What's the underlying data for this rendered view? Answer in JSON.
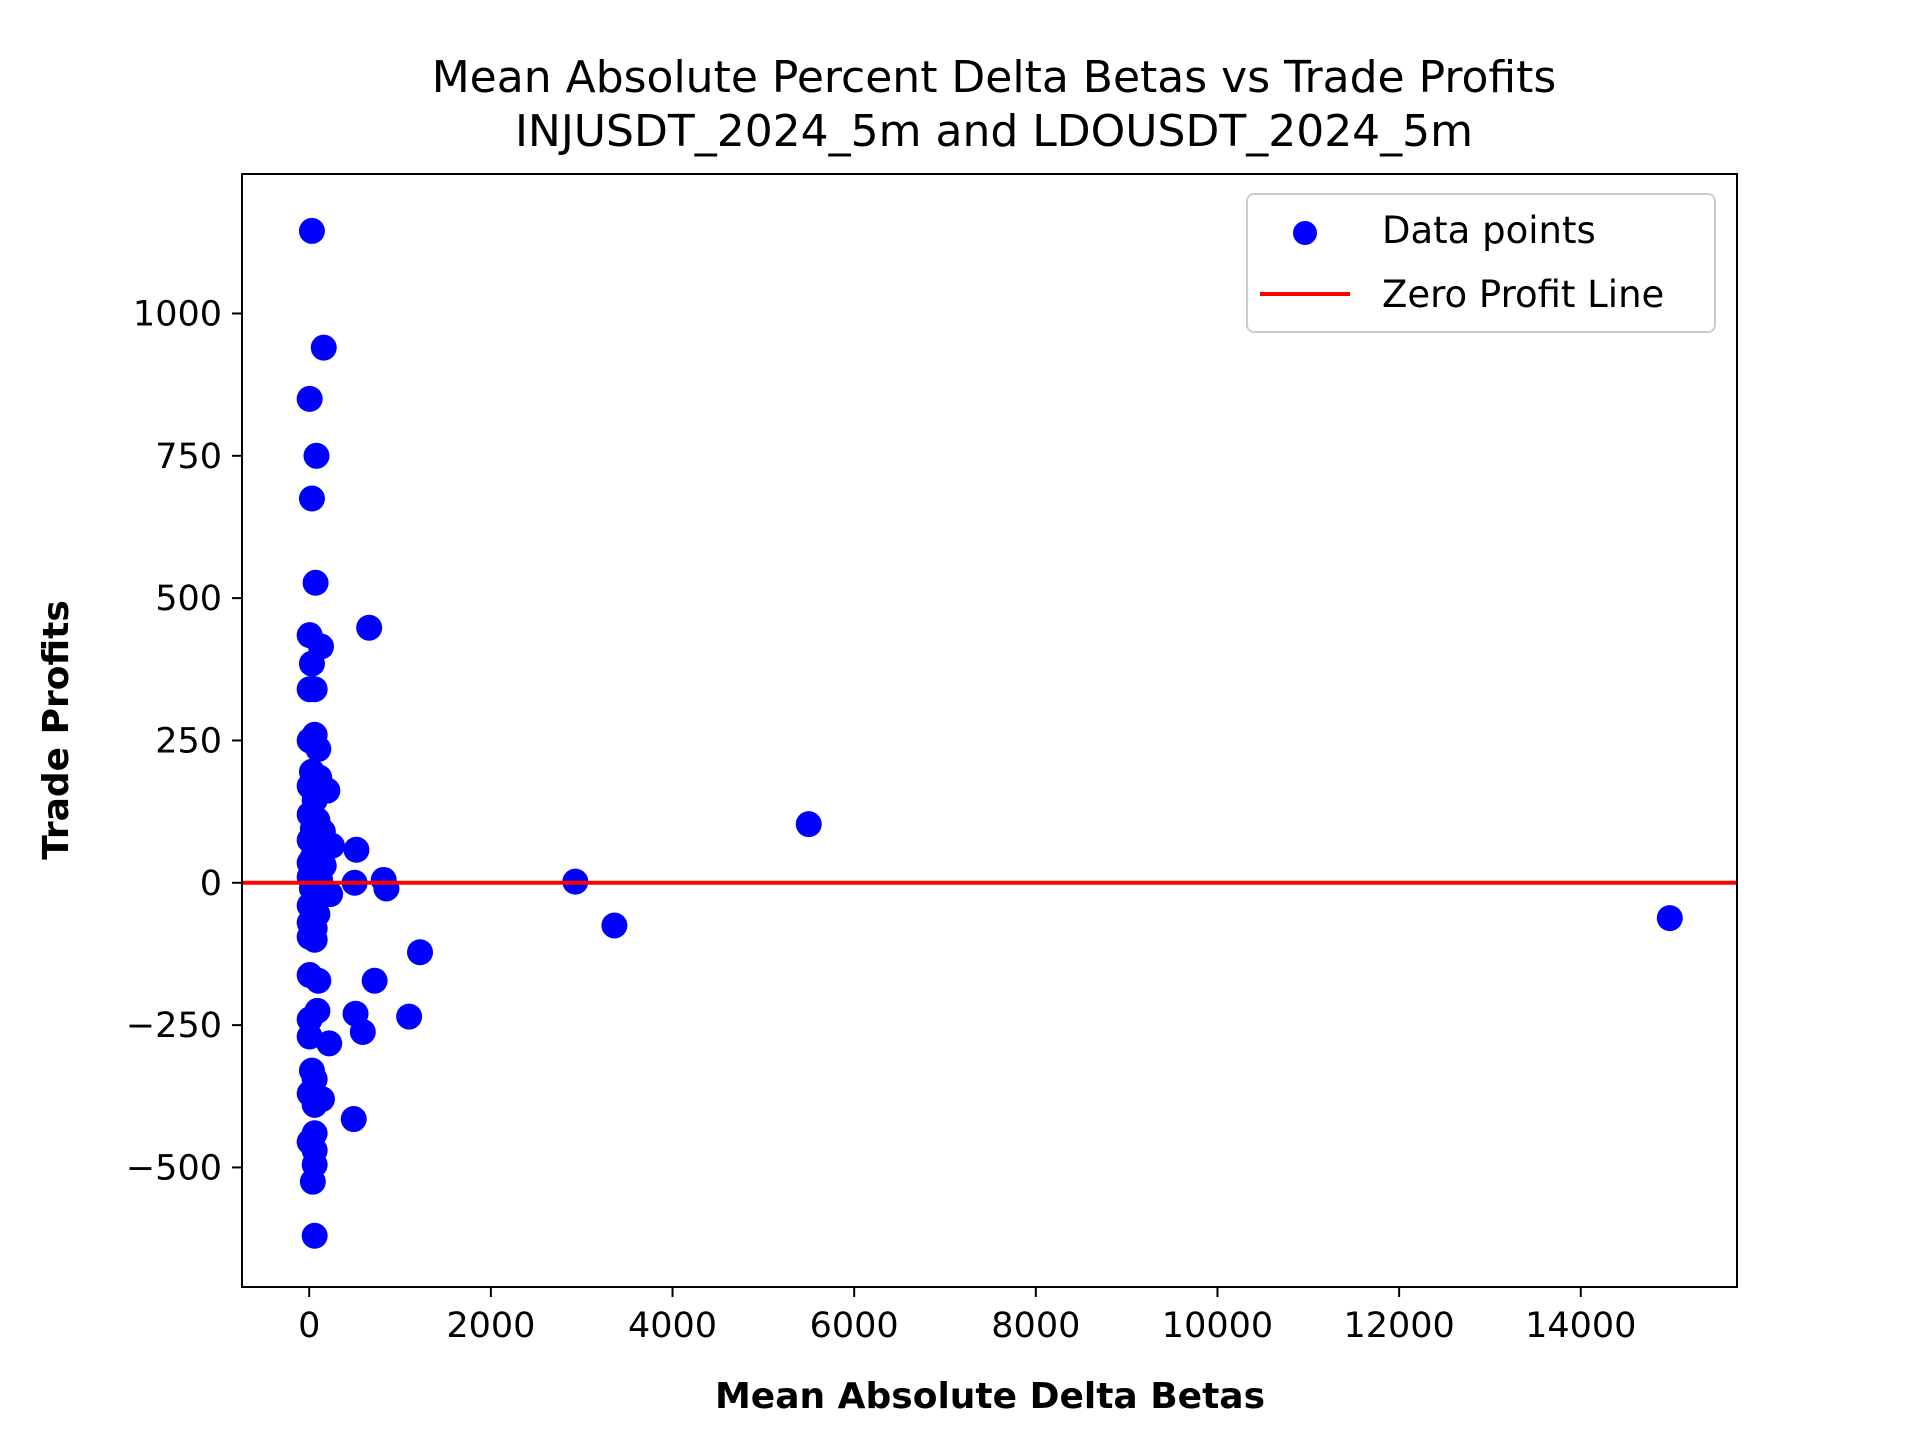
{
  "chart_data": {
    "type": "scatter",
    "title": "Mean Absolute Percent Delta Betas vs Trade Profits",
    "subtitle": "INJUSDT_2024_5m and LDOUSDT_2024_5m",
    "xlabel": "Mean Absolute Delta Betas",
    "ylabel": "Trade Profits",
    "xlim": [
      -740,
      15720
    ],
    "ylim": [
      -710,
      1245
    ],
    "xticks": [
      0,
      2000,
      4000,
      6000,
      8000,
      10000,
      12000,
      14000
    ],
    "yticks": [
      -500,
      -250,
      0,
      250,
      500,
      750,
      1000
    ],
    "xtick_labels": [
      "0",
      "2000",
      "4000",
      "6000",
      "8000",
      "10000",
      "12000",
      "14000"
    ],
    "ytick_labels": [
      "−500",
      "−250",
      "0",
      "250",
      "500",
      "750",
      "1000"
    ],
    "grid": false,
    "legend_position": "top-right",
    "colors": {
      "points": "#0000ff",
      "zero_line": "#ff0000"
    },
    "series": [
      {
        "name": "Data points",
        "kind": "scatter",
        "points": [
          {
            "x": 30,
            "y": 1145
          },
          {
            "x": 160,
            "y": 940
          },
          {
            "x": 5,
            "y": 850
          },
          {
            "x": 80,
            "y": 750
          },
          {
            "x": 30,
            "y": 675
          },
          {
            "x": 70,
            "y": 527
          },
          {
            "x": 660,
            "y": 448
          },
          {
            "x": 5,
            "y": 435
          },
          {
            "x": 130,
            "y": 415
          },
          {
            "x": 30,
            "y": 385
          },
          {
            "x": 5,
            "y": 340
          },
          {
            "x": 60,
            "y": 340
          },
          {
            "x": 60,
            "y": 260
          },
          {
            "x": 5,
            "y": 250
          },
          {
            "x": 100,
            "y": 235
          },
          {
            "x": 30,
            "y": 195
          },
          {
            "x": 110,
            "y": 185
          },
          {
            "x": 5,
            "y": 170
          },
          {
            "x": 200,
            "y": 162
          },
          {
            "x": 60,
            "y": 145
          },
          {
            "x": 5,
            "y": 120
          },
          {
            "x": 90,
            "y": 110
          },
          {
            "x": 40,
            "y": 95
          },
          {
            "x": 150,
            "y": 90
          },
          {
            "x": 5,
            "y": 75
          },
          {
            "x": 110,
            "y": 70
          },
          {
            "x": 250,
            "y": 65
          },
          {
            "x": 520,
            "y": 58
          },
          {
            "x": 40,
            "y": 45
          },
          {
            "x": 5,
            "y": 35
          },
          {
            "x": 160,
            "y": 30
          },
          {
            "x": 60,
            "y": 20
          },
          {
            "x": 5,
            "y": 10
          },
          {
            "x": 120,
            "y": 5
          },
          {
            "x": 500,
            "y": 0
          },
          {
            "x": 820,
            "y": 5
          },
          {
            "x": 2930,
            "y": 2
          },
          {
            "x": 850,
            "y": -10
          },
          {
            "x": 30,
            "y": -10
          },
          {
            "x": 230,
            "y": -20
          },
          {
            "x": 60,
            "y": -30
          },
          {
            "x": 5,
            "y": -40
          },
          {
            "x": 90,
            "y": -55
          },
          {
            "x": 5,
            "y": -70
          },
          {
            "x": 60,
            "y": -80
          },
          {
            "x": 3360,
            "y": -75
          },
          {
            "x": 5,
            "y": -95
          },
          {
            "x": 60,
            "y": -100
          },
          {
            "x": 1220,
            "y": -122
          },
          {
            "x": 5,
            "y": -162
          },
          {
            "x": 100,
            "y": -172
          },
          {
            "x": 720,
            "y": -172
          },
          {
            "x": 90,
            "y": -225
          },
          {
            "x": 510,
            "y": -230
          },
          {
            "x": 1100,
            "y": -235
          },
          {
            "x": 5,
            "y": -240
          },
          {
            "x": 590,
            "y": -262
          },
          {
            "x": 5,
            "y": -270
          },
          {
            "x": 220,
            "y": -282
          },
          {
            "x": 30,
            "y": -330
          },
          {
            "x": 60,
            "y": -345
          },
          {
            "x": 5,
            "y": -370
          },
          {
            "x": 140,
            "y": -380
          },
          {
            "x": 60,
            "y": -390
          },
          {
            "x": 490,
            "y": -415
          },
          {
            "x": 60,
            "y": -440
          },
          {
            "x": 5,
            "y": -455
          },
          {
            "x": 60,
            "y": -470
          },
          {
            "x": 60,
            "y": -495
          },
          {
            "x": 40,
            "y": -525
          },
          {
            "x": 60,
            "y": -620
          },
          {
            "x": 5500,
            "y": 103
          },
          {
            "x": 14980,
            "y": -62
          }
        ]
      },
      {
        "name": "Zero Profit Line",
        "kind": "hline",
        "y": 0
      }
    ]
  }
}
